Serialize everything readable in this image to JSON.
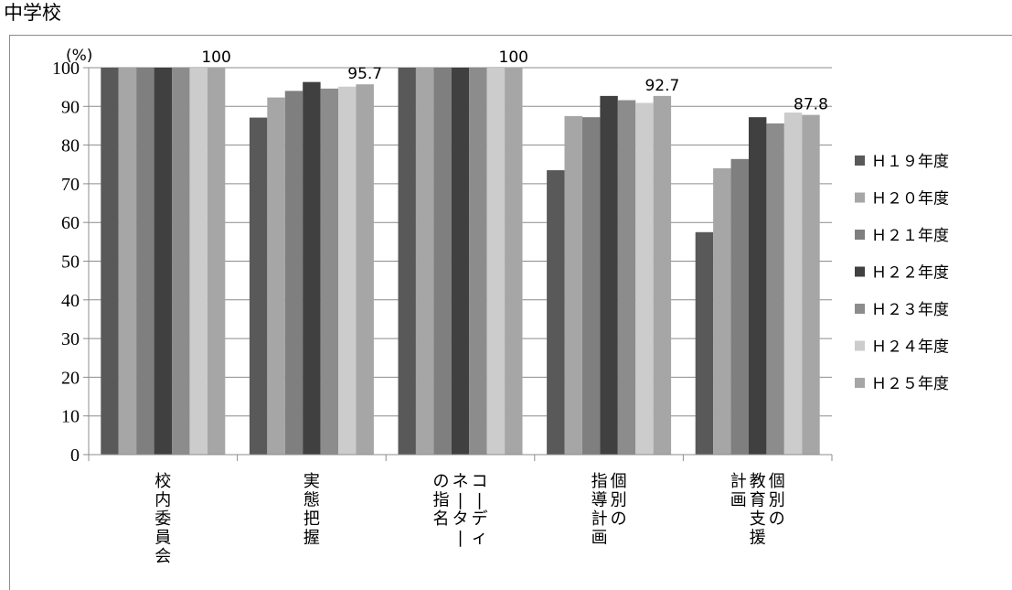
{
  "page_title": "中学校",
  "chart_data": {
    "type": "bar",
    "ylabel": "(%)",
    "ylim": [
      0,
      100
    ],
    "yticks": [
      0,
      10,
      20,
      30,
      40,
      50,
      60,
      70,
      80,
      90,
      100
    ],
    "grid": true,
    "legend_position": "right",
    "categories": [
      {
        "lines": [
          "校内委員会"
        ]
      },
      {
        "lines": [
          "実態把握"
        ]
      },
      {
        "lines": [
          "コーディ",
          "ネーター",
          "の指名"
        ]
      },
      {
        "lines": [
          "個別の",
          "指導計画"
        ]
      },
      {
        "lines": [
          "個別の",
          "教育支援",
          "計画"
        ]
      }
    ],
    "series": [
      {
        "name": "Ｈ１９年度",
        "color": "#595959",
        "values": [
          100,
          87.1,
          100,
          73.5,
          57.5
        ]
      },
      {
        "name": "Ｈ２０年度",
        "color": "#a6a6a6",
        "values": [
          100,
          92.3,
          100,
          87.5,
          74.0
        ]
      },
      {
        "name": "Ｈ２１年度",
        "color": "#7f7f7f",
        "values": [
          100,
          94.0,
          100,
          87.2,
          76.4
        ]
      },
      {
        "name": "Ｈ２２年度",
        "color": "#404040",
        "values": [
          100,
          96.3,
          100,
          92.7,
          87.2
        ]
      },
      {
        "name": "Ｈ２３年度",
        "color": "#8c8c8c",
        "values": [
          100,
          94.6,
          100,
          91.6,
          85.6
        ]
      },
      {
        "name": "Ｈ２４年度",
        "color": "#cccccc",
        "values": [
          100,
          95.1,
          100,
          90.9,
          88.4
        ]
      },
      {
        "name": "Ｈ２５年度",
        "color": "#a6a6a6",
        "values": [
          100,
          95.7,
          100,
          92.7,
          87.8
        ]
      }
    ],
    "data_labels": [
      "100",
      "95.7",
      "100",
      "92.7",
      "87.8"
    ],
    "data_label_series": 6
  }
}
